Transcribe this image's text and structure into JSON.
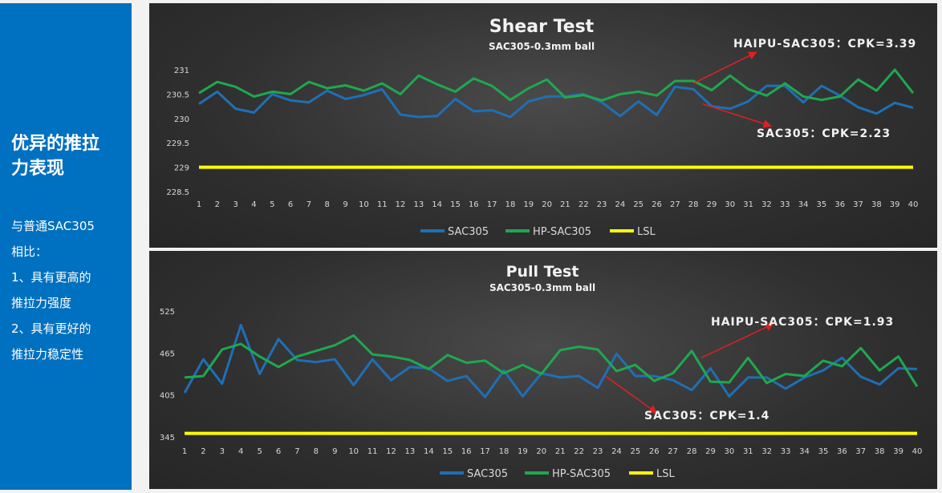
{
  "sidebar": {
    "heading_line1": "优异的推拉",
    "heading_line2": "力表现",
    "lines": [
      "与普通SAC305",
      "相比：",
      "1、具有更高的",
      "推拉力强度",
      "2、具有更好的",
      "推拉力稳定性"
    ]
  },
  "colors": {
    "sac305": "#1f6fb5",
    "hp_sac305": "#1fa84f",
    "lsl": "#ffff00",
    "arrow": "#e02020"
  },
  "chart_data": [
    {
      "type": "line",
      "title": "Shear Test",
      "subtitle": "SAC305-0.3mm ball",
      "ylim": [
        228.5,
        231
      ],
      "yticks": [
        "228.5",
        "229",
        "229.5",
        "230",
        "230.5",
        "231"
      ],
      "x": [
        1,
        2,
        3,
        4,
        5,
        6,
        7,
        8,
        9,
        10,
        11,
        12,
        13,
        14,
        15,
        16,
        17,
        18,
        19,
        20,
        21,
        22,
        23,
        24,
        25,
        26,
        27,
        28,
        29,
        30,
        31,
        32,
        33,
        34,
        35,
        36,
        37,
        38,
        39,
        40
      ],
      "series": [
        {
          "name": "SAC305",
          "values": [
            230.3,
            230.55,
            230.2,
            230.12,
            230.5,
            230.37,
            230.33,
            230.57,
            230.4,
            230.48,
            230.6,
            230.08,
            230.03,
            230.05,
            230.4,
            230.15,
            230.17,
            230.03,
            230.35,
            230.45,
            230.45,
            230.5,
            230.33,
            230.05,
            230.35,
            230.07,
            230.65,
            230.6,
            230.25,
            230.2,
            230.35,
            230.67,
            230.67,
            230.33,
            230.67,
            230.47,
            230.23,
            230.1,
            230.32,
            230.22
          ]
        },
        {
          "name": "HP-SAC305",
          "values": [
            230.52,
            230.75,
            230.65,
            230.45,
            230.55,
            230.5,
            230.75,
            230.62,
            230.68,
            230.57,
            230.72,
            230.5,
            230.88,
            230.7,
            230.55,
            230.82,
            230.67,
            230.38,
            230.62,
            230.8,
            230.43,
            230.48,
            230.37,
            230.5,
            230.55,
            230.47,
            230.77,
            230.77,
            230.58,
            230.88,
            230.6,
            230.47,
            230.72,
            230.45,
            230.38,
            230.45,
            230.8,
            230.57,
            231.0,
            230.52
          ]
        },
        {
          "name": "LSL",
          "values": [
            229,
            229,
            229,
            229,
            229,
            229,
            229,
            229,
            229,
            229,
            229,
            229,
            229,
            229,
            229,
            229,
            229,
            229,
            229,
            229,
            229,
            229,
            229,
            229,
            229,
            229,
            229,
            229,
            229,
            229,
            229,
            229,
            229,
            229,
            229,
            229,
            229,
            229,
            229,
            229
          ]
        }
      ],
      "annotations": [
        {
          "text": "HAIPU-SAC305：CPK=3.39",
          "from_x": 28,
          "from_y": 230.72,
          "to_x": 31.4,
          "to_y": 231.35
        },
        {
          "text": "SAC305：CPK=2.23",
          "from_x": 28.5,
          "from_y": 230.3,
          "to_x": 32.2,
          "to_y": 229.85
        }
      ]
    },
    {
      "type": "line",
      "title": "Pull Test",
      "subtitle": "SAC305-0.3mm ball",
      "ylim": [
        345,
        525
      ],
      "yticks": [
        "345",
        "405",
        "465",
        "525"
      ],
      "x": [
        1,
        2,
        3,
        4,
        5,
        6,
        7,
        8,
        9,
        10,
        11,
        12,
        13,
        14,
        15,
        16,
        17,
        18,
        19,
        20,
        21,
        22,
        23,
        24,
        25,
        26,
        27,
        28,
        29,
        30,
        31,
        32,
        33,
        34,
        35,
        36,
        37,
        38,
        39,
        40
      ],
      "series": [
        {
          "name": "SAC305",
          "values": [
            408,
            456,
            421,
            505,
            435,
            485,
            455,
            452,
            456,
            419,
            456,
            426,
            445,
            443,
            425,
            432,
            402,
            440,
            403,
            436,
            430,
            432,
            415,
            464,
            432,
            432,
            426,
            412,
            443,
            403,
            430,
            430,
            414,
            430,
            440,
            458,
            431,
            420,
            443,
            442
          ]
        },
        {
          "name": "HP-SAC305",
          "values": [
            430,
            432,
            470,
            478,
            460,
            445,
            460,
            468,
            476,
            490,
            463,
            460,
            455,
            442,
            462,
            451,
            454,
            436,
            448,
            435,
            469,
            474,
            470,
            439,
            448,
            425,
            436,
            468,
            424,
            423,
            458,
            422,
            435,
            432,
            454,
            446,
            472,
            440,
            460,
            417
          ]
        },
        {
          "name": "LSL",
          "values": [
            350,
            350,
            350,
            350,
            350,
            350,
            350,
            350,
            350,
            350,
            350,
            350,
            350,
            350,
            350,
            350,
            350,
            350,
            350,
            350,
            350,
            350,
            350,
            350,
            350,
            350,
            350,
            350,
            350,
            350,
            350,
            350,
            350,
            350,
            350,
            350,
            350,
            350,
            350,
            350
          ]
        }
      ],
      "annotations": [
        {
          "text": "HAIPU-SAC305：CPK=1.93",
          "from_x": 28.5,
          "from_y": 458,
          "to_x": 32.3,
          "to_y": 506
        },
        {
          "text": "SAC305：CPK=1.4",
          "from_x": 23.4,
          "from_y": 432,
          "to_x": 26.1,
          "to_y": 380
        }
      ]
    }
  ]
}
